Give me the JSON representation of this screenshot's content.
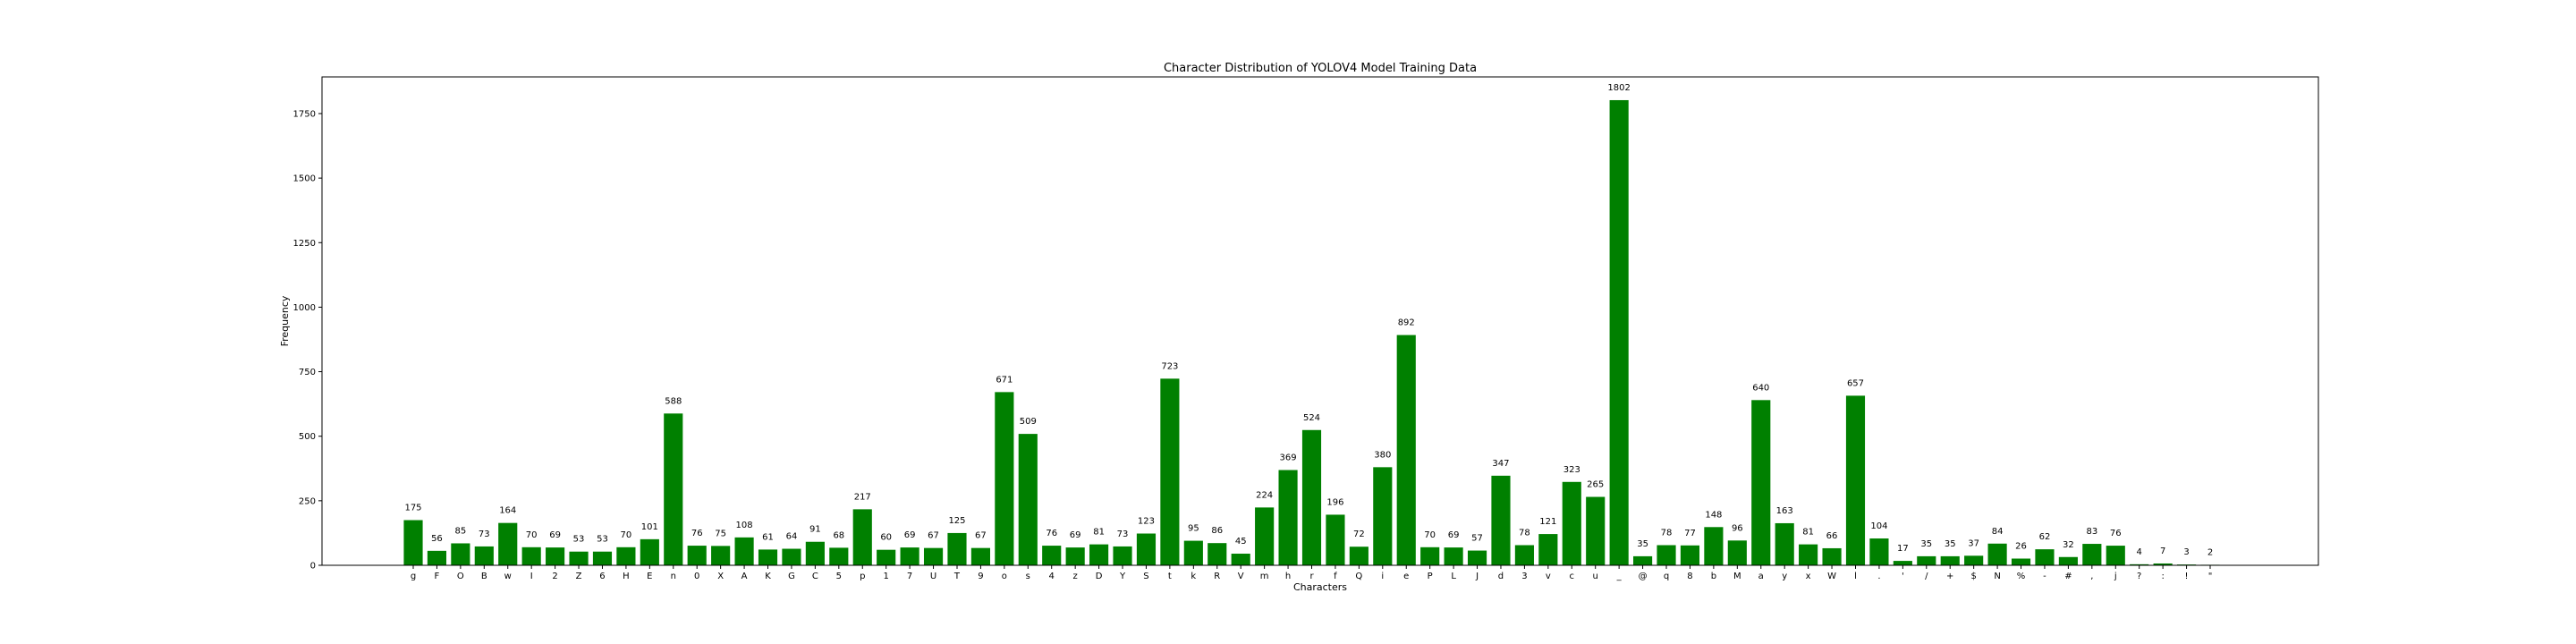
{
  "chart_data": {
    "type": "bar",
    "title": "Character Distribution of YOLOV4 Model Training Data",
    "xlabel": "Characters",
    "ylabel": "Frequency",
    "ylim": [
      0,
      1892
    ],
    "yticks": [
      0,
      250,
      500,
      750,
      1000,
      1250,
      1500,
      1750
    ],
    "bar_color": "#008000",
    "grid": false,
    "categories": [
      "g",
      "F",
      "O",
      "B",
      "w",
      "I",
      "2",
      "Z",
      "6",
      "H",
      "E",
      "n",
      "0",
      "X",
      "A",
      "K",
      "G",
      "C",
      "5",
      "p",
      "1",
      "7",
      "U",
      "T",
      "9",
      "o",
      "s",
      "4",
      "z",
      "D",
      "Y",
      "S",
      "t",
      "k",
      "R",
      "V",
      "m",
      "h",
      "r",
      "f",
      "Q",
      "i",
      "e",
      "P",
      "L",
      "J",
      "d",
      "3",
      "v",
      "c",
      "u",
      "_",
      "@",
      "q",
      "8",
      "b",
      "M",
      "a",
      "y",
      "x",
      "W",
      "l",
      ".",
      "'",
      "/",
      "+",
      "$",
      "N",
      "%",
      "-",
      "#",
      ",",
      "j",
      "?",
      ":",
      "!",
      "\""
    ],
    "values": [
      175,
      56,
      85,
      73,
      164,
      70,
      69,
      53,
      53,
      70,
      101,
      588,
      76,
      75,
      108,
      61,
      64,
      91,
      68,
      217,
      60,
      69,
      67,
      125,
      67,
      671,
      509,
      76,
      69,
      81,
      73,
      123,
      723,
      95,
      86,
      45,
      224,
      369,
      524,
      196,
      72,
      380,
      892,
      70,
      69,
      57,
      347,
      78,
      121,
      323,
      265,
      1802,
      35,
      78,
      77,
      148,
      96,
      640,
      163,
      81,
      66,
      657,
      104,
      17,
      35,
      35,
      37,
      84,
      26,
      62,
      32,
      83,
      76,
      4,
      7,
      3,
      2
    ]
  }
}
